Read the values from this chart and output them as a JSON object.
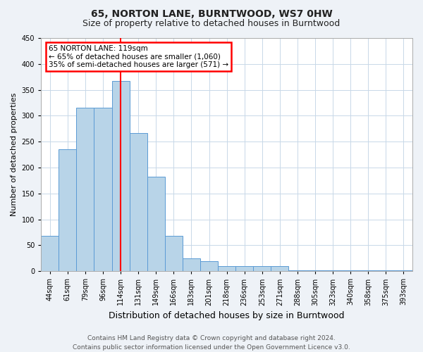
{
  "title": "65, NORTON LANE, BURNTWOOD, WS7 0HW",
  "subtitle": "Size of property relative to detached houses in Burntwood",
  "xlabel": "Distribution of detached houses by size in Burntwood",
  "ylabel": "Number of detached properties",
  "categories": [
    "44sqm",
    "61sqm",
    "79sqm",
    "96sqm",
    "114sqm",
    "131sqm",
    "149sqm",
    "166sqm",
    "183sqm",
    "201sqm",
    "218sqm",
    "236sqm",
    "253sqm",
    "271sqm",
    "288sqm",
    "305sqm",
    "323sqm",
    "340sqm",
    "358sqm",
    "375sqm",
    "393sqm"
  ],
  "values": [
    68,
    236,
    315,
    315,
    367,
    267,
    183,
    68,
    25,
    20,
    10,
    10,
    10,
    10,
    2,
    2,
    2,
    2,
    2,
    2,
    2
  ],
  "bar_color": "#b8d4e8",
  "bar_edge_color": "#5b9bd5",
  "vline_x": 4,
  "vline_color": "red",
  "annotation_text": "65 NORTON LANE: 119sqm\n← 65% of detached houses are smaller (1,060)\n35% of semi-detached houses are larger (571) →",
  "annotation_box_color": "white",
  "annotation_box_edge_color": "red",
  "ylim": [
    0,
    450
  ],
  "yticks": [
    0,
    50,
    100,
    150,
    200,
    250,
    300,
    350,
    400,
    450
  ],
  "footer": "Contains HM Land Registry data © Crown copyright and database right 2024.\nContains public sector information licensed under the Open Government Licence v3.0.",
  "background_color": "#eef2f7",
  "plot_bg_color": "#ffffff",
  "title_fontsize": 10,
  "subtitle_fontsize": 9,
  "xlabel_fontsize": 9,
  "ylabel_fontsize": 8,
  "footer_fontsize": 6.5,
  "tick_fontsize": 7
}
